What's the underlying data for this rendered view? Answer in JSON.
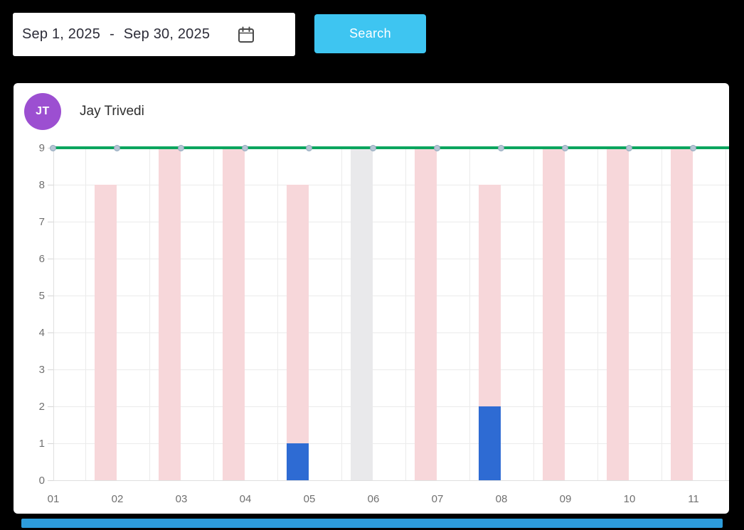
{
  "toolbar": {
    "date_range": {
      "start": "Sep 1, 2025",
      "separator": "-",
      "end": "Sep 30, 2025"
    },
    "search_label": "Search",
    "search_color": "#3ec5f1"
  },
  "employee": {
    "initials": "JT",
    "name": "Jay Trivedi",
    "avatar_color": "#9c4fd1"
  },
  "colors": {
    "background": "#000000",
    "card": "#ffffff",
    "pink_bar": "#f7d7da",
    "blue_bar": "#2e6bd3",
    "gray_bar": "#e9e9eb",
    "target_line": "#0ba55e",
    "line_marker": "#b6c5d4",
    "axis_text": "#707070",
    "scrollbar": "#2d9cdb"
  },
  "chart_data": {
    "type": "bar",
    "stacked": true,
    "grid": true,
    "categories": [
      "01",
      "02",
      "03",
      "04",
      "05",
      "06",
      "07",
      "08",
      "09",
      "10",
      "11"
    ],
    "series": [
      {
        "name": "series-blue",
        "color": "#2e6bd3",
        "values": [
          0,
          0,
          0,
          0,
          1,
          0,
          0,
          2,
          0,
          0,
          0
        ]
      },
      {
        "name": "series-pink",
        "color": "#f7d7da",
        "values": [
          0,
          8,
          9,
          9,
          7,
          0,
          9,
          6,
          9,
          9,
          9
        ]
      },
      {
        "name": "series-gray",
        "color": "#e9e9eb",
        "values": [
          0,
          0,
          0,
          0,
          0,
          9,
          0,
          0,
          0,
          0,
          0
        ]
      }
    ],
    "totals_per_day": [
      0,
      8,
      9,
      9,
      8,
      9,
      9,
      8,
      9,
      9,
      9
    ],
    "line": {
      "name": "target-line",
      "value": 9,
      "color": "#0ba55e"
    },
    "ylim": [
      0,
      9
    ],
    "ytick_step": 1,
    "title": "",
    "xlabel": "",
    "ylabel": ""
  }
}
